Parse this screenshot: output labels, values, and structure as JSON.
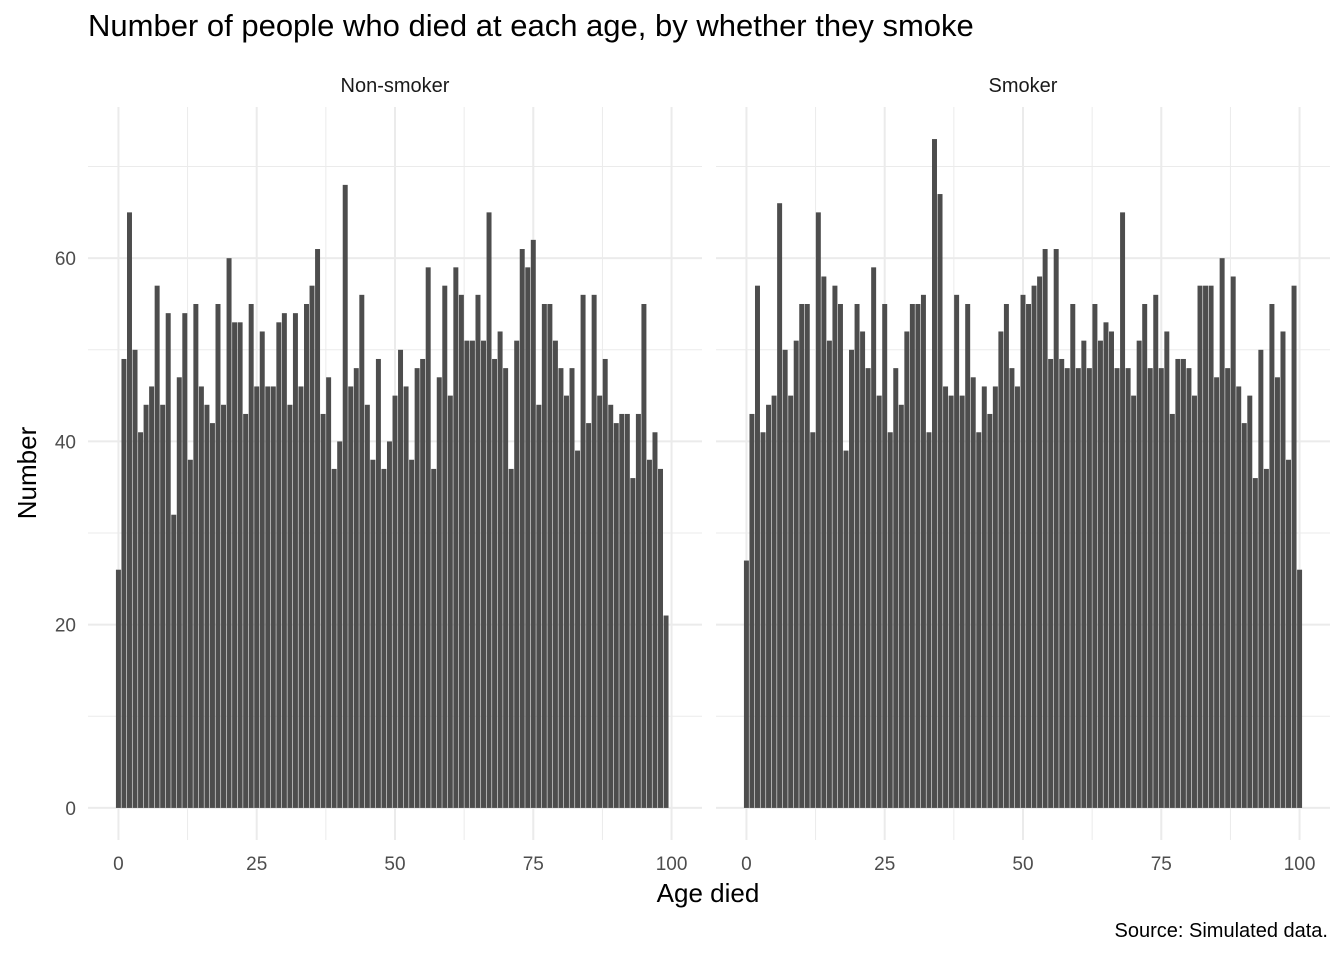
{
  "chart_data": {
    "type": "bar",
    "title": "Number of people who died at each age, by whether they smoke",
    "xlabel": "Age died",
    "ylabel": "Number",
    "caption": "Source: Simulated data.",
    "x": [
      0,
      1,
      2,
      3,
      4,
      5,
      6,
      7,
      8,
      9,
      10,
      11,
      12,
      13,
      14,
      15,
      16,
      17,
      18,
      19,
      20,
      21,
      22,
      23,
      24,
      25,
      26,
      27,
      28,
      29,
      30,
      31,
      32,
      33,
      34,
      35,
      36,
      37,
      38,
      39,
      40,
      41,
      42,
      43,
      44,
      45,
      46,
      47,
      48,
      49,
      50,
      51,
      52,
      53,
      54,
      55,
      56,
      57,
      58,
      59,
      60,
      61,
      62,
      63,
      64,
      65,
      66,
      67,
      68,
      69,
      70,
      71,
      72,
      73,
      74,
      75,
      76,
      77,
      78,
      79,
      80,
      81,
      82,
      83,
      84,
      85,
      86,
      87,
      88,
      89,
      90,
      91,
      92,
      93,
      94,
      95,
      96,
      97,
      98,
      99,
      100
    ],
    "xlim": [
      -5.5,
      105.5
    ],
    "ylim": [
      -3.5,
      76.5
    ],
    "x_ticks": [
      "0",
      "25",
      "50",
      "75",
      "100"
    ],
    "y_ticks": [
      "0",
      "20",
      "40",
      "60"
    ],
    "grid": true,
    "legend": "none",
    "bar_color": "#4d4d4d",
    "series": [
      {
        "name": "Non-smoker",
        "values": [
          26,
          49,
          65,
          50,
          41,
          44,
          46,
          57,
          44,
          54,
          32,
          47,
          54,
          38,
          55,
          46,
          44,
          42,
          55,
          44,
          60,
          53,
          53,
          43,
          55,
          46,
          52,
          46,
          46,
          53,
          54,
          44,
          54,
          46,
          55,
          57,
          61,
          43,
          47,
          37,
          40,
          68,
          46,
          48,
          56,
          44,
          38,
          49,
          37,
          40,
          45,
          50,
          46,
          38,
          48,
          49,
          59,
          37,
          47,
          57,
          45,
          59,
          56,
          51,
          51,
          56,
          51,
          65,
          49,
          52,
          48,
          37,
          51,
          61,
          59,
          62,
          44,
          55,
          55,
          51,
          48,
          45,
          48,
          39,
          56,
          42,
          56,
          45,
          49,
          44,
          42,
          43,
          43,
          36,
          43,
          55,
          38,
          41,
          37,
          21,
          0
        ]
      },
      {
        "name": "Smoker",
        "values": [
          27,
          43,
          57,
          41,
          44,
          45,
          66,
          50,
          45,
          51,
          55,
          55,
          41,
          65,
          58,
          51,
          57,
          55,
          39,
          50,
          55,
          52,
          48,
          59,
          45,
          55,
          41,
          48,
          44,
          52,
          55,
          55,
          56,
          41,
          73,
          67,
          46,
          45,
          56,
          45,
          55,
          47,
          41,
          46,
          43,
          46,
          52,
          55,
          48,
          46,
          56,
          55,
          57,
          58,
          61,
          49,
          61,
          49,
          48,
          55,
          48,
          51,
          48,
          55,
          51,
          53,
          52,
          48,
          65,
          48,
          45,
          51,
          55,
          48,
          56,
          48,
          52,
          43,
          49,
          49,
          48,
          45,
          57,
          57,
          57,
          47,
          60,
          48,
          58,
          46,
          42,
          45,
          36,
          50,
          37,
          55,
          47,
          52,
          38,
          57,
          26
        ]
      }
    ]
  }
}
